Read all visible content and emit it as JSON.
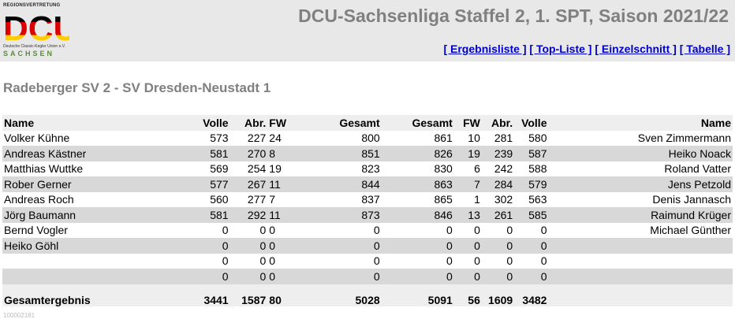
{
  "logo": {
    "top_text": "REGIONSVERTRETUNG",
    "letters": "DCU",
    "sub_text": "Deutsche Classic-Kegler Union e.V.",
    "region": "SACHSEN"
  },
  "title": "DCU-Sachsenliga Staffel 2, 1. SPT, Saison 2021/22",
  "nav": [
    "[ Ergebnisliste ]",
    "[ Top-Liste ]",
    "[ Einzelschnitt ]",
    "[ Tabelle ]"
  ],
  "match_title": "Radeberger SV 2 - SV Dresden-Neustadt 1",
  "table": {
    "headers": [
      "Name",
      "Volle",
      "Abr.",
      "FW",
      "Gesamt",
      "Gesamt",
      "FW",
      "Abr.",
      "Volle",
      "Name"
    ],
    "rows": [
      [
        "Volker Kühne",
        "573",
        "227",
        "24",
        "800",
        "861",
        "10",
        "281",
        "580",
        "Sven Zimmermann"
      ],
      [
        "Andreas Kästner",
        "581",
        "270",
        "8",
        "851",
        "826",
        "19",
        "239",
        "587",
        "Heiko Noack"
      ],
      [
        "Matthias Wuttke",
        "569",
        "254",
        "19",
        "823",
        "830",
        "6",
        "242",
        "588",
        "Roland Vatter"
      ],
      [
        "Rober Gerner",
        "577",
        "267",
        "11",
        "844",
        "863",
        "7",
        "284",
        "579",
        "Jens Petzold"
      ],
      [
        "Andreas Roch",
        "560",
        "277",
        "7",
        "837",
        "865",
        "1",
        "302",
        "563",
        "Denis Jannasch"
      ],
      [
        "Jörg Baumann",
        "581",
        "292",
        "11",
        "873",
        "846",
        "13",
        "261",
        "585",
        "Raimund Krüger"
      ],
      [
        "Bernd Vogler",
        "0",
        "0",
        "0",
        "0",
        "0",
        "0",
        "0",
        "0",
        "Michael Günther"
      ],
      [
        "Heiko Göhl",
        "0",
        "0",
        "0",
        "0",
        "0",
        "0",
        "0",
        "0",
        ""
      ],
      [
        "",
        "0",
        "0",
        "0",
        "0",
        "0",
        "0",
        "0",
        "0",
        ""
      ],
      [
        "",
        "0",
        "0",
        "0",
        "0",
        "0",
        "0",
        "0",
        "0",
        ""
      ]
    ],
    "total": [
      "Gesamtergebnis",
      "3441",
      "1587",
      "80",
      "5028",
      "5091",
      "56",
      "1609",
      "3482",
      ""
    ]
  },
  "footer": "100002181"
}
